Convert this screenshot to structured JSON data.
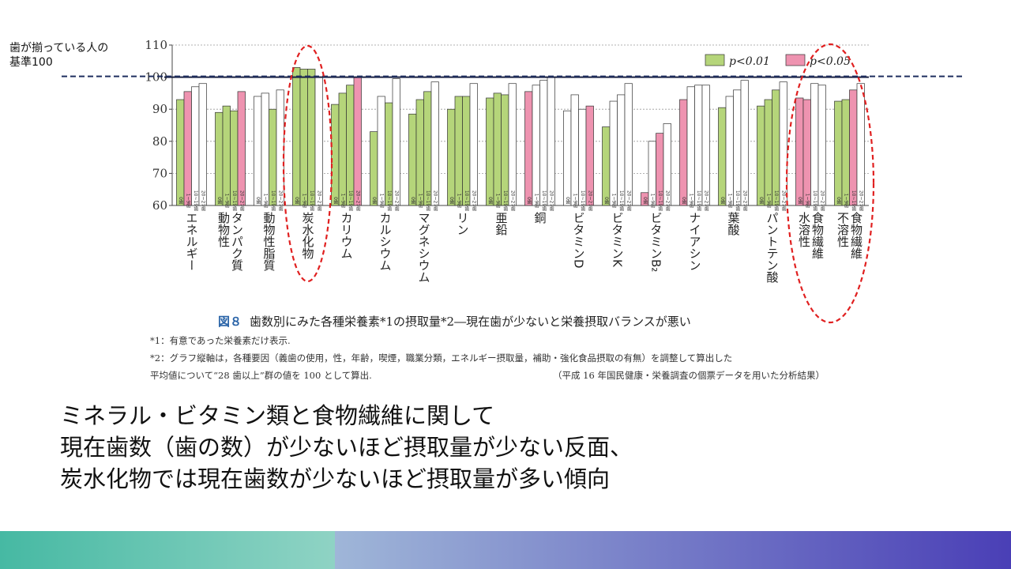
{
  "baseline_label": [
    "歯が揃っている人の",
    "基準100"
  ],
  "caption": {
    "fig_label": "図８",
    "title": "歯数別にみた各種栄養素*1の摂取量*2―現在歯が少ないと栄養摂取バランスが悪い"
  },
  "notes": {
    "note1": "*1：有意であった栄養素だけ表示.",
    "note2_line1": "*2：グラフ縦軸は，各種要因（義歯の使用，性，年齢，喫煙，職業分類，エネルギー摂取量，補助・強化食品摂取の有無）を調整して算出した",
    "note2_line2": "平均値について“28 歯以上”群の値を 100 として算出.",
    "source": "（平成 16 年国民健康・栄養調査の個票データを用いた分析結果）"
  },
  "summary_lines": [
    "ミネラル・ビタミン類と食物繊維に関して",
    "現在歯数（歯の数）が少ないほど摂取量が少ない反面、",
    "炭水化物では現在歯数が少ないほど摂取量が多い傾向"
  ],
  "colors": {
    "p001": "#b5d57a",
    "p005": "#ee93b0",
    "ns": "#ffffff",
    "baseline": "#1f2f5f",
    "highlight": "#e02020"
  },
  "chart_data": {
    "type": "bar",
    "ylim": [
      60,
      110
    ],
    "yticks": [
      60,
      70,
      80,
      90,
      100,
      110
    ],
    "group_labels": [
      "0歯",
      "1~9歯",
      "10~19歯",
      "20~27歯"
    ],
    "legend": [
      {
        "label": "p<0.01",
        "color_key": "p001"
      },
      {
        "label": "p<0.05",
        "color_key": "p005"
      }
    ],
    "baseline_value": 100,
    "categories": [
      "エネルギー",
      "動物性タンパク質",
      "動物性脂質",
      "炭水化物",
      "カリウム",
      "カルシウム",
      "マグネシウム",
      "リン",
      "亜鉛",
      "銅",
      "ビタミンD",
      "ビタミンK",
      "ビタミンB2",
      "ナイアシン",
      "葉酸",
      "パントテン酸",
      "水溶性食物繊維",
      "不溶性食物繊維"
    ],
    "category_display": [
      "エネルギー",
      "動物性\nタンパク質",
      "動物性脂質",
      "炭水化物",
      "カリウム",
      "カルシウム",
      "マグネシウム",
      "リン",
      "亜鉛",
      "銅",
      "ビタミンD",
      "ビタミンK",
      "ビタミンB₂",
      "ナイアシン",
      "葉酸",
      "パントテン酸",
      "水溶性\n食物繊維",
      "不溶性\n食物繊維"
    ],
    "values": [
      [
        93,
        95.5,
        97,
        98
      ],
      [
        89,
        91,
        89.5,
        95.5
      ],
      [
        94,
        95,
        90,
        96
      ],
      [
        103,
        102.5,
        102.5,
        100
      ],
      [
        91.5,
        95,
        97.5,
        100
      ],
      [
        83,
        94,
        92,
        99.5
      ],
      [
        88.5,
        93,
        95.5,
        98.5
      ],
      [
        90,
        94,
        94,
        98
      ],
      [
        93.5,
        95,
        94.5,
        98
      ],
      [
        95.5,
        97.5,
        99,
        100
      ],
      [
        89.5,
        94.5,
        90,
        91
      ],
      [
        84.5,
        92.5,
        94.5,
        98
      ],
      [
        64,
        80,
        82.5,
        85.5
      ],
      [
        93,
        97,
        97.5,
        97.5
      ],
      [
        90.5,
        94,
        96,
        99
      ],
      [
        91,
        93,
        96,
        98.5
      ],
      [
        93.5,
        93,
        98,
        97.5
      ],
      [
        92.5,
        93,
        96,
        98
      ]
    ],
    "significance": [
      [
        "p001",
        "p005",
        "ns",
        "ns"
      ],
      [
        "p001",
        "p001",
        "p001",
        "p005"
      ],
      [
        "ns",
        "ns",
        "p001",
        "ns"
      ],
      [
        "p001",
        "p001",
        "p001",
        "ns"
      ],
      [
        "p001",
        "p001",
        "p001",
        "p005"
      ],
      [
        "p001",
        "ns",
        "p001",
        "ns"
      ],
      [
        "p001",
        "p001",
        "p001",
        "ns"
      ],
      [
        "p001",
        "p001",
        "p001",
        "ns"
      ],
      [
        "p001",
        "p001",
        "p001",
        "ns"
      ],
      [
        "p005",
        "ns",
        "ns",
        "ns"
      ],
      [
        "ns",
        "ns",
        "ns",
        "p005"
      ],
      [
        "p001",
        "ns",
        "ns",
        "ns"
      ],
      [
        "p005",
        "ns",
        "p005",
        "ns"
      ],
      [
        "p005",
        "ns",
        "ns",
        "ns"
      ],
      [
        "p001",
        "ns",
        "ns",
        "ns"
      ],
      [
        "p001",
        "p001",
        "p001",
        "ns"
      ],
      [
        "p005",
        "p005",
        "ns",
        "ns"
      ],
      [
        "p001",
        "p001",
        "p005",
        "ns"
      ]
    ]
  }
}
